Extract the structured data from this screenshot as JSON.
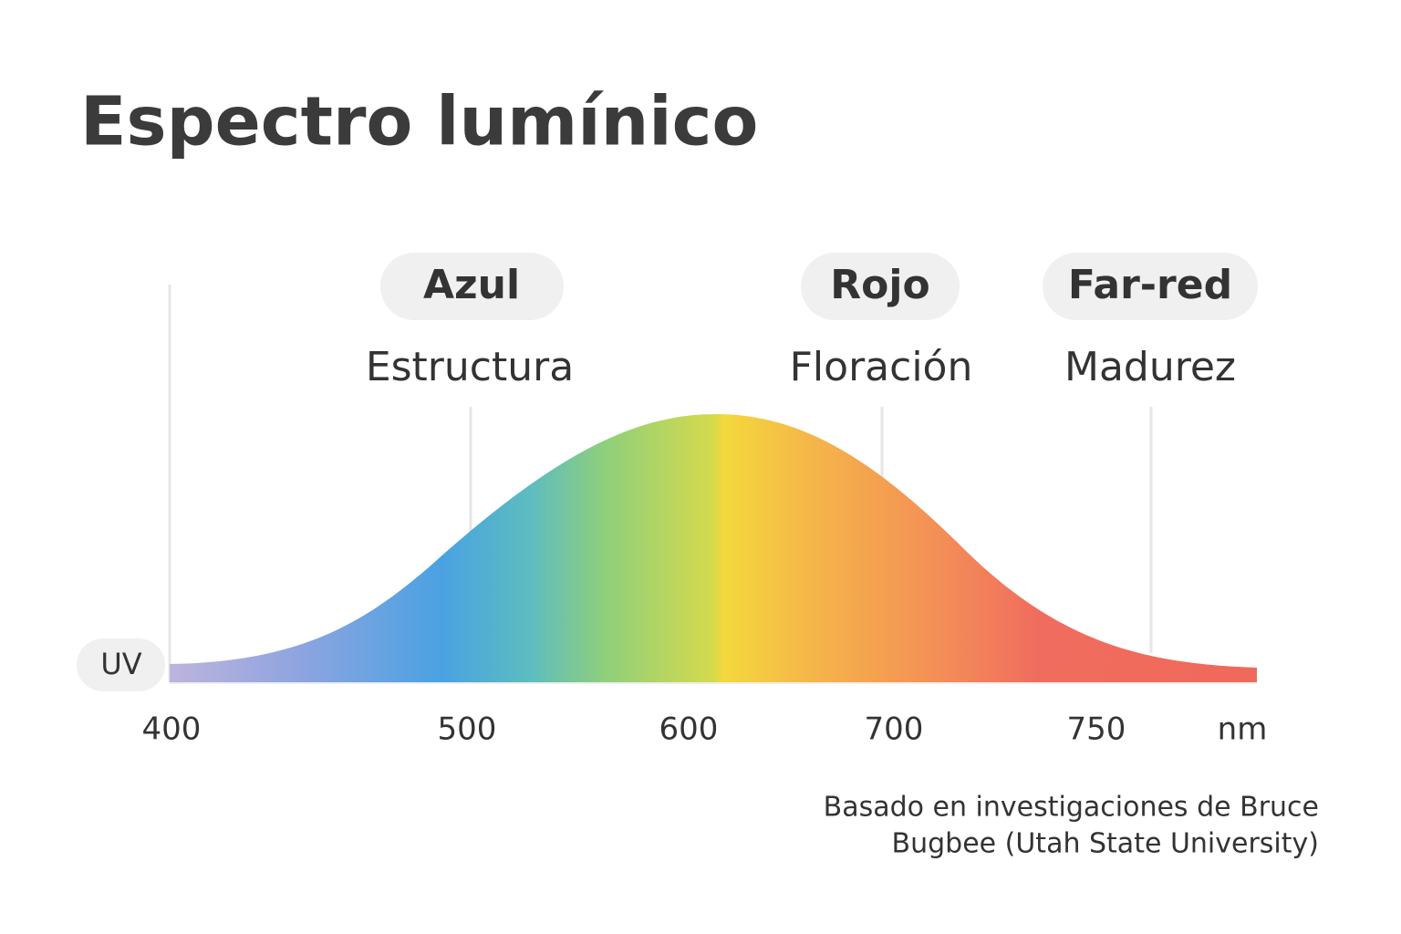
{
  "title": "Espectro lumínico",
  "bands": [
    {
      "label": "Azul",
      "sublabel": "Estructura"
    },
    {
      "label": "Rojo",
      "sublabel": "Floración"
    },
    {
      "label": "Far-red",
      "sublabel": "Madurez"
    }
  ],
  "uv_label": "UV",
  "axis": {
    "ticks": [
      400,
      500,
      600,
      700,
      750
    ],
    "unit": "nm"
  },
  "footnote": [
    "Basado en investigaciones de Bruce",
    "Bugbee (Utah State University)"
  ]
}
